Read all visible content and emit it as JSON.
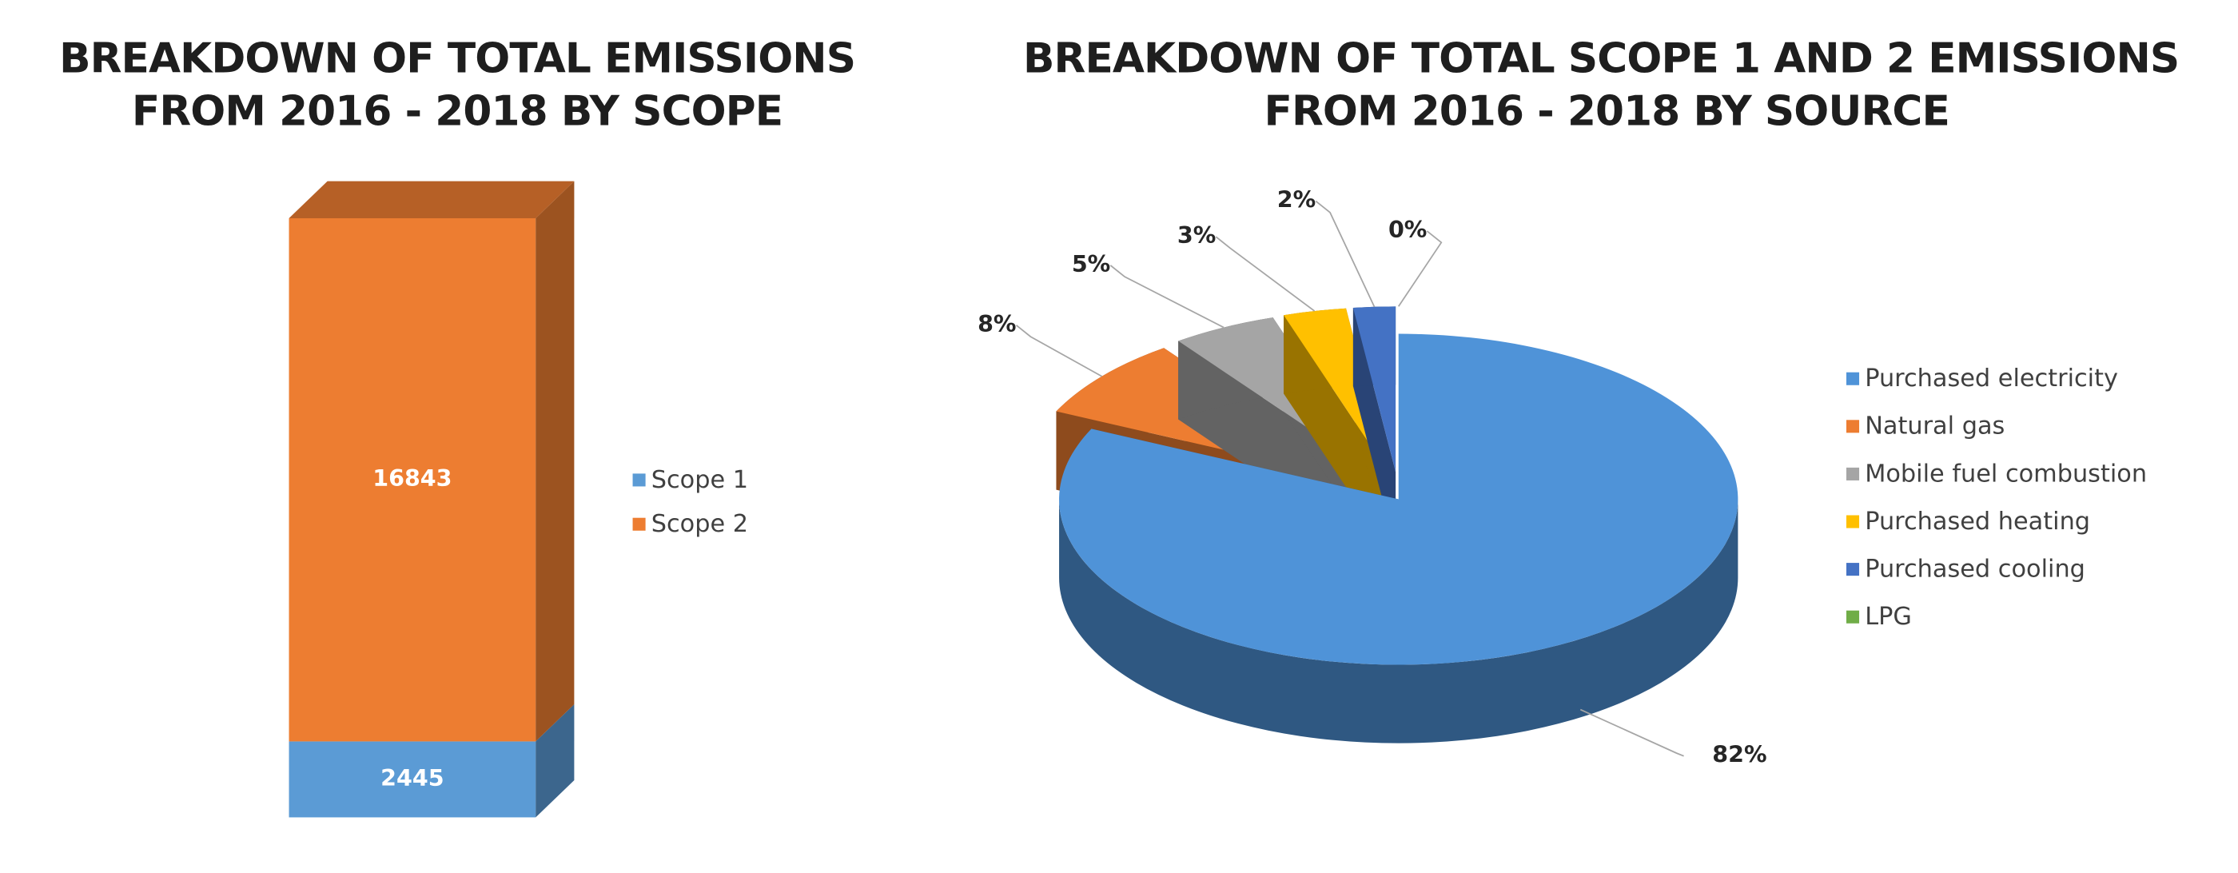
{
  "chart_data": [
    {
      "type": "stacked-bar-3d",
      "title": [
        "BREAKDOWN OF TOTAL EMISSIONS",
        "FROM 2016 - 2018 BY SCOPE"
      ],
      "categories": [
        null
      ],
      "series": [
        {
          "name": "Scope 1",
          "color": "#5b9bd5",
          "values": [
            2445
          ]
        },
        {
          "name": "Scope 2",
          "color": "#ed7d31",
          "values": [
            16843
          ]
        }
      ],
      "legend": "right"
    },
    {
      "type": "pie-3d",
      "title": [
        "BREAKDOWN OF TOTAL SCOPE 1 AND 2 EMISSIONS",
        "FROM 2016 - 2018 BY SOURCE"
      ],
      "categories": [
        "Purchased electricity",
        "Natural gas",
        "Mobile fuel combustion",
        "Purchased heating",
        "Purchased cooling",
        "LPG"
      ],
      "values": [
        82,
        8,
        5,
        3,
        2,
        0
      ],
      "value_labels": [
        "82%",
        "8%",
        "5%",
        "3%",
        "2%",
        "0%"
      ],
      "colors": [
        "#4f93d8",
        "#ed7d31",
        "#a5a5a5",
        "#ffc000",
        "#4472c4",
        "#70ad47"
      ],
      "legend": "right"
    }
  ]
}
